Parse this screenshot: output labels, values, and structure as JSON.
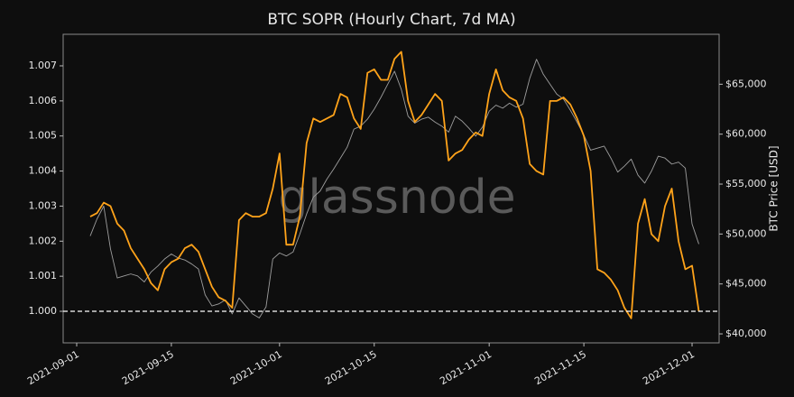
{
  "chart_data": {
    "type": "line",
    "title": "BTC SOPR (Hourly Chart, 7d MA)",
    "y2label": "BTC Price [USD]",
    "watermark": "glassnode",
    "hline": 1,
    "x": [
      "2021-09-03",
      "2021-09-04",
      "2021-09-05",
      "2021-09-06",
      "2021-09-07",
      "2021-09-08",
      "2021-09-09",
      "2021-09-10",
      "2021-09-11",
      "2021-09-12",
      "2021-09-13",
      "2021-09-14",
      "2021-09-15",
      "2021-09-16",
      "2021-09-17",
      "2021-09-18",
      "2021-09-19",
      "2021-09-20",
      "2021-09-21",
      "2021-09-22",
      "2021-09-23",
      "2021-09-24",
      "2021-09-25",
      "2021-09-26",
      "2021-09-27",
      "2021-09-28",
      "2021-09-29",
      "2021-09-30",
      "2021-10-01",
      "2021-10-02",
      "2021-10-03",
      "2021-10-04",
      "2021-10-05",
      "2021-10-06",
      "2021-10-07",
      "2021-10-08",
      "2021-10-09",
      "2021-10-10",
      "2021-10-11",
      "2021-10-12",
      "2021-10-13",
      "2021-10-14",
      "2021-10-15",
      "2021-10-16",
      "2021-10-17",
      "2021-10-18",
      "2021-10-19",
      "2021-10-20",
      "2021-10-21",
      "2021-10-22",
      "2021-10-23",
      "2021-10-24",
      "2021-10-25",
      "2021-10-26",
      "2021-10-27",
      "2021-10-28",
      "2021-10-29",
      "2021-10-30",
      "2021-10-31",
      "2021-11-01",
      "2021-11-02",
      "2021-11-03",
      "2021-11-04",
      "2021-11-05",
      "2021-11-06",
      "2021-11-07",
      "2021-11-08",
      "2021-11-09",
      "2021-11-10",
      "2021-11-11",
      "2021-11-12",
      "2021-11-13",
      "2021-11-14",
      "2021-11-15",
      "2021-11-16",
      "2021-11-17",
      "2021-11-18",
      "2021-11-19",
      "2021-11-20",
      "2021-11-21",
      "2021-11-22",
      "2021-11-23",
      "2021-11-24",
      "2021-11-25",
      "2021-11-26",
      "2021-11-27",
      "2021-11-28",
      "2021-11-29",
      "2021-11-30",
      "2021-12-01",
      "2021-12-02"
    ],
    "series": [
      {
        "color": "#9e9e9e",
        "axis": "y2",
        "values": [
          49800,
          51500,
          52800,
          48500,
          45600,
          45800,
          46000,
          45800,
          45200,
          46200,
          46800,
          47500,
          48000,
          47600,
          47400,
          47000,
          46500,
          43900,
          42800,
          43000,
          43400,
          42000,
          43600,
          42800,
          42000,
          41600,
          42700,
          47500,
          48100,
          47800,
          48200,
          50000,
          52000,
          53700,
          54300,
          55500,
          56500,
          57600,
          58700,
          60500,
          60800,
          61500,
          62500,
          63700,
          65000,
          66300,
          64500,
          61800,
          61100,
          61500,
          61700,
          61200,
          60800,
          60200,
          61800,
          61300,
          60600,
          59800,
          60700,
          62300,
          62900,
          62600,
          63100,
          62700,
          63000,
          65600,
          67500,
          66000,
          65000,
          64000,
          63500,
          62400,
          61200,
          59900,
          58400,
          58600,
          58800,
          57600,
          56200,
          56800,
          57500,
          55900,
          55100,
          56300,
          57800,
          57600,
          57000,
          57200,
          56600,
          51000,
          49000
        ]
      },
      {
        "color": "#ffa31a",
        "values": [
          1.0027,
          1.0028,
          1.0031,
          1.003,
          1.0025,
          1.0023,
          1.0018,
          1.0015,
          1.0012,
          1.0008,
          1.0006,
          1.0012,
          1.0014,
          1.0015,
          1.0018,
          1.0019,
          1.0017,
          1.0012,
          1.0007,
          1.0004,
          1.0003,
          1.0001,
          1.0026,
          1.0028,
          1.0027,
          1.0027,
          1.0028,
          1.0035,
          1.0045,
          1.0019,
          1.0019,
          1.0027,
          1.0048,
          1.0055,
          1.0054,
          1.0055,
          1.0056,
          1.0062,
          1.0061,
          1.0055,
          1.0052,
          1.0068,
          1.0069,
          1.0066,
          1.0066,
          1.0072,
          1.0074,
          1.006,
          1.0054,
          1.0056,
          1.0059,
          1.0062,
          1.006,
          1.0043,
          1.0045,
          1.0046,
          1.0049,
          1.0051,
          1.005,
          1.0062,
          1.0069,
          1.0063,
          1.0061,
          1.006,
          1.0055,
          1.0042,
          1.004,
          1.0039,
          1.006,
          1.006,
          1.0061,
          1.0059,
          1.0055,
          1.005,
          1.004,
          1.0012,
          1.0011,
          1.0009,
          1.0006,
          1.0001,
          0.9998,
          1.0025,
          1.0032,
          1.0022,
          1.002,
          1.003,
          1.0035,
          1.002,
          1.0012,
          1.0013,
          1.0
        ]
      }
    ],
    "xlim": [
      "2021-08-30",
      "2021-12-05"
    ],
    "xticks": [
      "2021-09-01",
      "2021-09-15",
      "2021-10-01",
      "2021-10-15",
      "2021-11-01",
      "2021-11-15",
      "2021-12-01"
    ],
    "ylim": [
      0.9991,
      1.0079
    ],
    "yticks": [
      {
        "value": 1,
        "label": "1.000"
      },
      1.001,
      1.002,
      1.003,
      1.004,
      1.005,
      1.006,
      1.007
    ],
    "y2lim": [
      39100,
      70000
    ],
    "y2ticks": [
      {
        "value": 40000,
        "label": "$40,000"
      },
      {
        "value": 45000,
        "label": "$45,000"
      },
      {
        "value": 50000,
        "label": "$50,000"
      },
      {
        "value": 55000,
        "label": "$55,000"
      },
      {
        "value": 60000,
        "label": "$60,000"
      },
      {
        "value": 65000,
        "label": "$65,000"
      }
    ],
    "grid": false
  }
}
